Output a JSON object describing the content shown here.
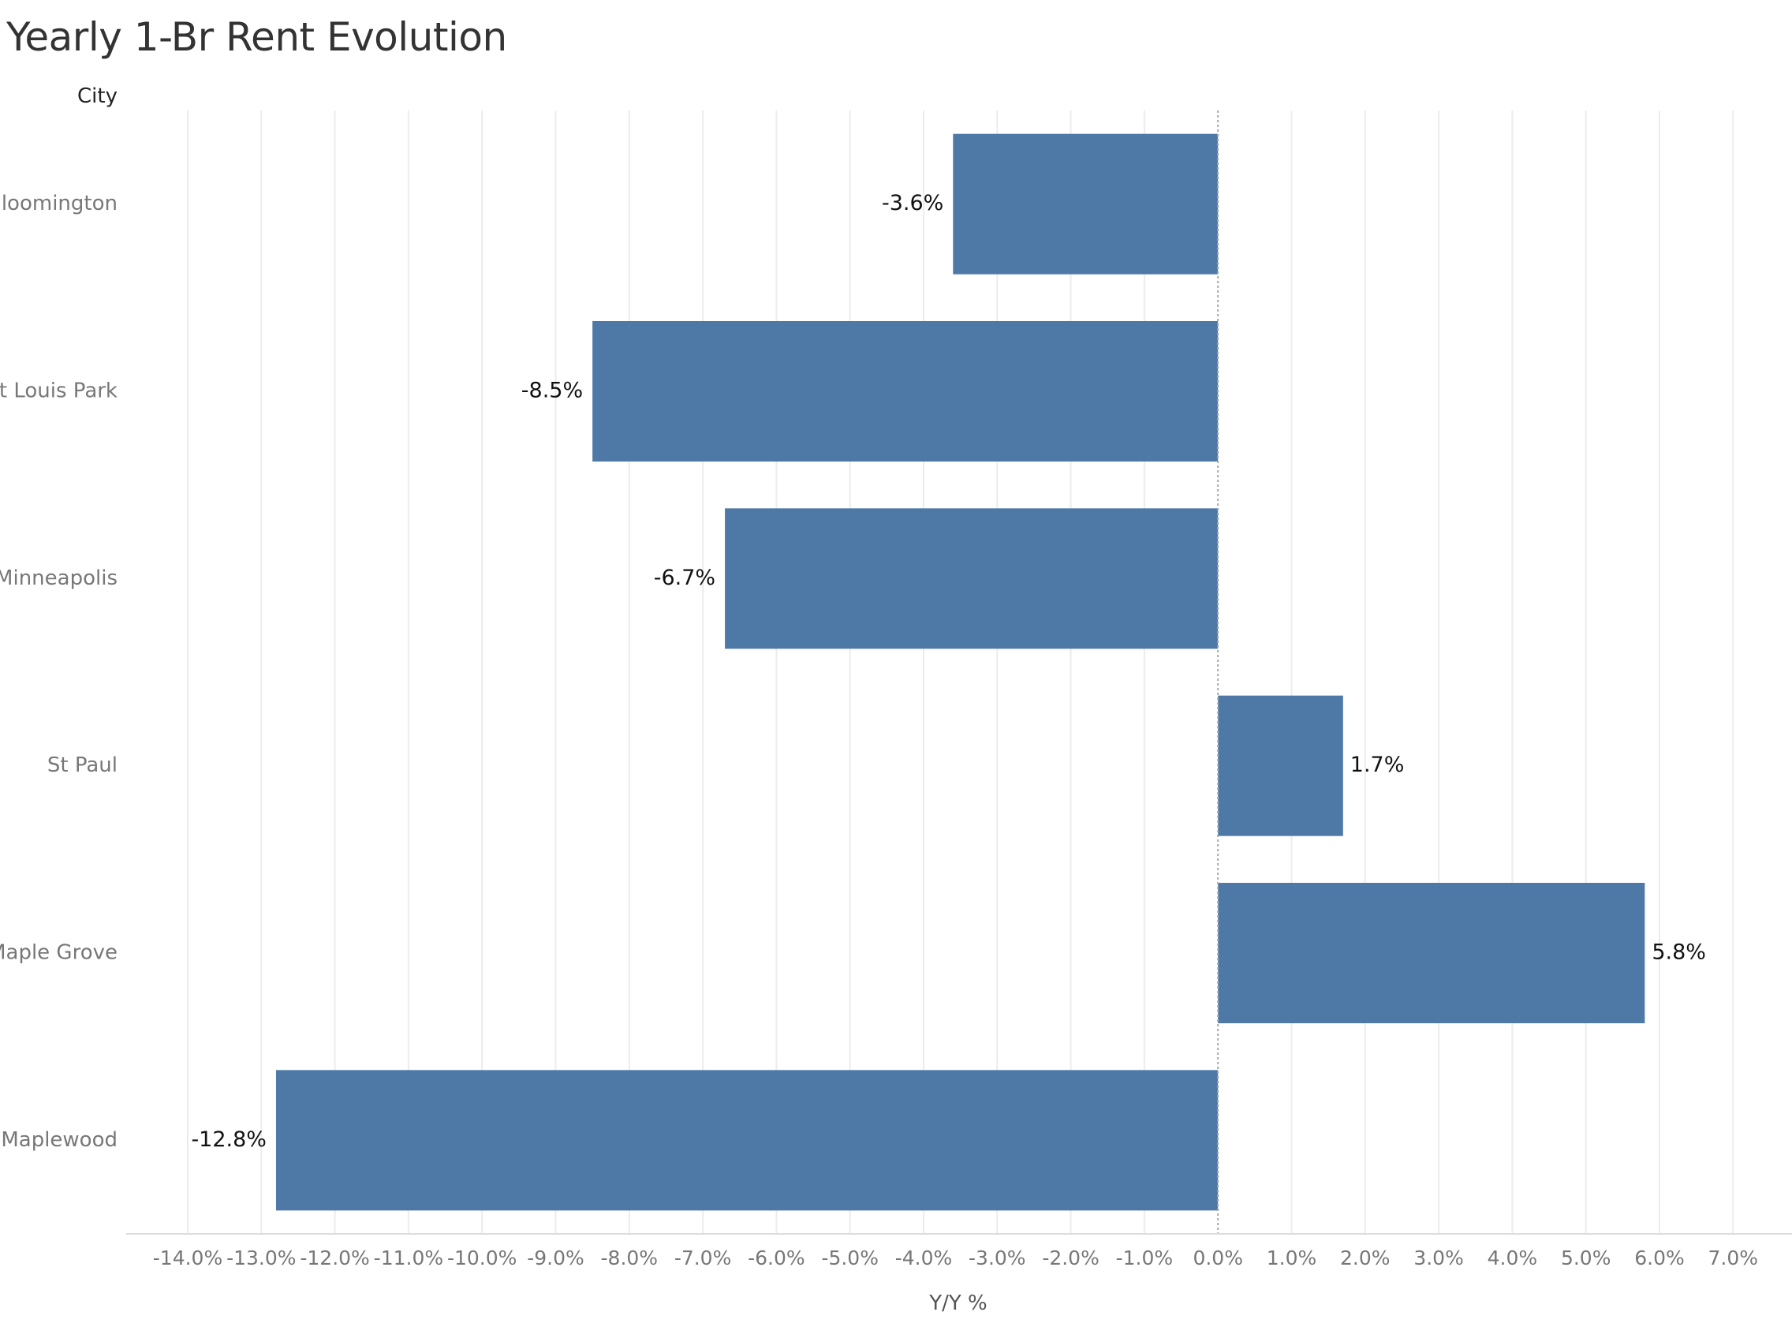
{
  "title": "Yearly 1-Br Rent Evolution",
  "chart_data": {
    "type": "bar",
    "orientation": "horizontal",
    "title": "Yearly 1-Br Rent Evolution",
    "ylabel": "City",
    "xlabel": "Y/Y %",
    "categories": [
      "Bloomington",
      "St Louis Park",
      "Minneapolis",
      "St Paul",
      "Maple Grove",
      "Maplewood"
    ],
    "values": [
      -3.6,
      -8.5,
      -6.7,
      1.7,
      5.8,
      -12.8
    ],
    "data_labels": [
      "-3.6%",
      "-8.5%",
      "-6.7%",
      "1.7%",
      "5.8%",
      "-12.8%"
    ],
    "xlim": [
      -14.0,
      7.0
    ],
    "xticks": [
      -14,
      -13,
      -12,
      -11,
      -10,
      -9,
      -8,
      -7,
      -6,
      -5,
      -4,
      -3,
      -2,
      -1,
      0,
      1,
      2,
      3,
      4,
      5,
      6,
      7
    ],
    "xtick_labels": [
      "-14.0%",
      "-13.0%",
      "-12.0%",
      "-11.0%",
      "-10.0%",
      "-9.0%",
      "-8.0%",
      "-7.0%",
      "-6.0%",
      "-5.0%",
      "-4.0%",
      "-3.0%",
      "-2.0%",
      "-1.0%",
      "0.0%",
      "1.0%",
      "2.0%",
      "3.0%",
      "4.0%",
      "5.0%",
      "6.0%",
      "7.0%"
    ],
    "grid": true,
    "bar_color": "#4e79a7"
  }
}
